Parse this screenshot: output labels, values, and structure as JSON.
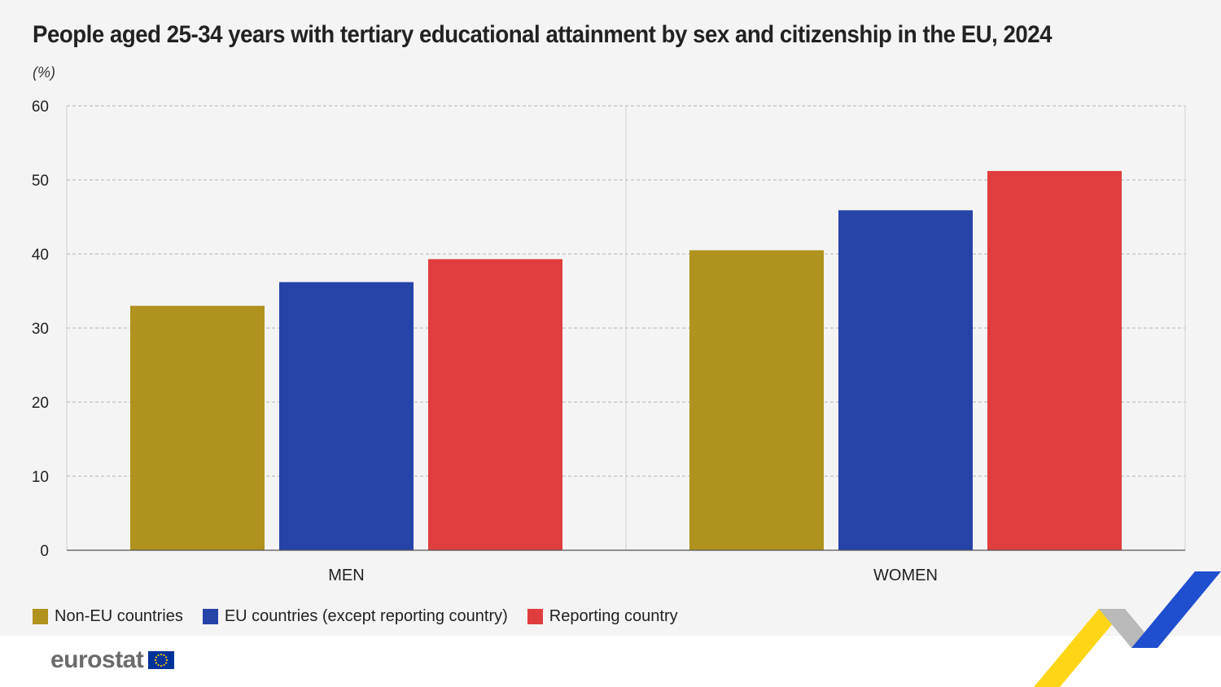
{
  "title": "People aged 25-34 years with tertiary educational attainment by sex and citizenship in the EU, 2024",
  "unit": "(%)",
  "chart_data": {
    "type": "bar",
    "title": "People aged 25-34 years with tertiary educational attainment by sex and citizenship in the EU, 2024",
    "ylabel": "(%)",
    "xlabel": "",
    "categories": [
      "MEN",
      "WOMEN"
    ],
    "ylim": [
      0,
      60
    ],
    "yticks": [
      0,
      10,
      20,
      30,
      40,
      50,
      60
    ],
    "grid": true,
    "legend_position": "bottom-left",
    "series": [
      {
        "name": "Non-EU countries",
        "color": "#b0921e",
        "values": [
          33.0,
          40.5
        ]
      },
      {
        "name": "EU countries (except reporting country)",
        "color": "#2643a8",
        "values": [
          36.2,
          45.9
        ]
      },
      {
        "name": "Reporting country",
        "color": "#e03e3e",
        "values": [
          39.3,
          51.2
        ]
      }
    ]
  },
  "logo": {
    "text": "eurostat"
  }
}
